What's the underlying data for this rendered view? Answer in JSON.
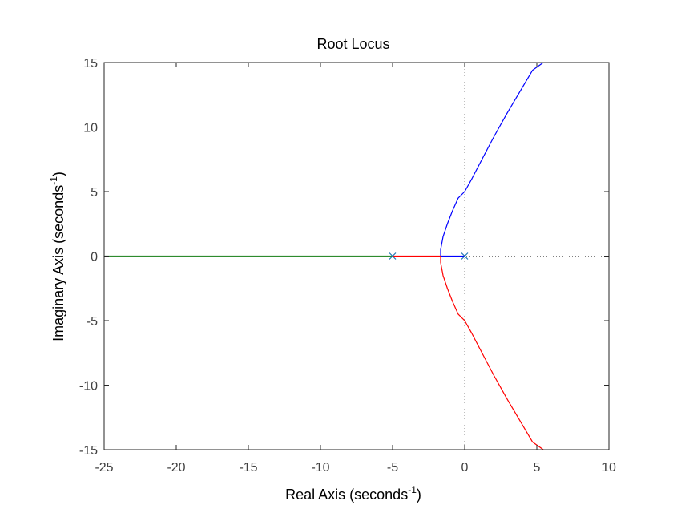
{
  "chart_data": {
    "type": "line",
    "title": "Root Locus",
    "xlabel": {
      "text": "Real Axis (seconds",
      "sup": "-1",
      "close": ")"
    },
    "ylabel": {
      "text": "Imaginary Axis (seconds",
      "sup": "-1",
      "close": ")"
    },
    "xlim": [
      -25,
      10
    ],
    "ylim": [
      -15,
      15
    ],
    "xticks": [
      -25,
      -20,
      -15,
      -10,
      -5,
      0,
      5,
      10
    ],
    "xtick_labels": [
      "-25",
      "-20",
      "-15",
      "-10",
      "-5",
      "0",
      "5",
      "10"
    ],
    "yticks": [
      -15,
      -10,
      -5,
      0,
      5,
      10,
      15
    ],
    "ytick_labels": [
      "-15",
      "-10",
      "-5",
      "0",
      "5",
      "10",
      "15"
    ],
    "grid": false,
    "guides": [
      {
        "kind": "vertical",
        "x": 0,
        "style": "dotted",
        "color": "#808080"
      },
      {
        "kind": "horizontal",
        "y": 0,
        "style": "dotted",
        "color": "#808080"
      }
    ],
    "series": [
      {
        "color": "#0000ff",
        "points": [
          [
            0,
            0
          ],
          [
            -1.667,
            0
          ],
          [
            -1.667,
            0.5
          ],
          [
            -1.5,
            1.5
          ],
          [
            -1.2,
            2.5
          ],
          [
            -0.85,
            3.5
          ],
          [
            -0.45,
            4.5
          ],
          [
            0,
            5
          ],
          [
            0.5,
            6.0
          ],
          [
            1.2,
            7.5
          ],
          [
            2.0,
            9.2
          ],
          [
            2.9,
            11.0
          ],
          [
            3.8,
            12.7
          ],
          [
            4.7,
            14.4
          ],
          [
            5.45,
            15
          ]
        ]
      },
      {
        "color": "#ff0000",
        "points": [
          [
            -5,
            0
          ],
          [
            -1.667,
            0
          ],
          [
            -1.667,
            -0.5
          ],
          [
            -1.5,
            -1.5
          ],
          [
            -1.2,
            -2.5
          ],
          [
            -0.85,
            -3.5
          ],
          [
            -0.45,
            -4.5
          ],
          [
            0,
            -5
          ],
          [
            0.5,
            -6.0
          ],
          [
            1.2,
            -7.5
          ],
          [
            2.0,
            -9.2
          ],
          [
            2.9,
            -11.0
          ],
          [
            3.8,
            -12.7
          ],
          [
            4.7,
            -14.4
          ],
          [
            5.45,
            -15
          ]
        ]
      },
      {
        "color": "#2e8b2e",
        "points": [
          [
            -5,
            0
          ],
          [
            -25,
            0
          ]
        ]
      }
    ],
    "poles": [
      {
        "x": -5,
        "y": 0
      },
      {
        "x": 0,
        "y": 0
      }
    ],
    "pole_color": "#1f77b4"
  }
}
